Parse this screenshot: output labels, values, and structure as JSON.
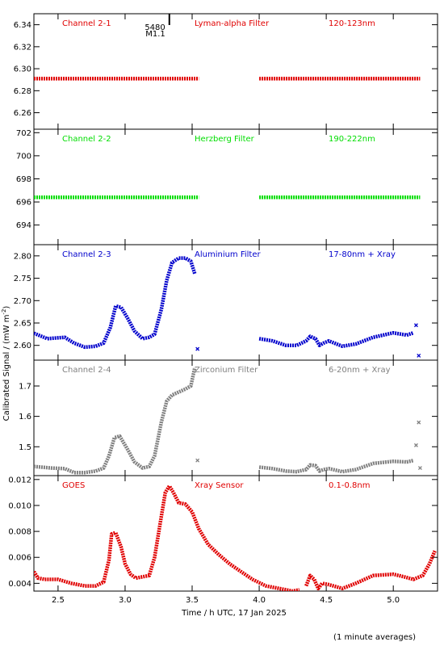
{
  "figure": {
    "ylabel": "Calibrated Signal / (mW m",
    "ylabel_sup": "-2",
    "ylabel_end": ")",
    "xlabel": "Time / h UTC, 17 Jan 2025",
    "footnote": "(1 minute averages)",
    "flare_marker": {
      "number": "5480",
      "class": "M1.1",
      "time": 3.33
    }
  },
  "chart_data": {
    "type": "scatter",
    "x_axis": {
      "range": [
        2.32,
        5.33
      ],
      "ticks": [
        2.5,
        3.0,
        3.5,
        4.0,
        4.5,
        5.0
      ],
      "tick_labels": [
        "2.5",
        "3.0",
        "3.5",
        "4.0",
        "4.5",
        "5.0"
      ]
    },
    "panels": [
      {
        "key": "p1",
        "color": "#e00000",
        "labels": [
          "Channel 2-1",
          "Lyman-alpha Filter",
          "120-123nm"
        ],
        "ylim": [
          6.245,
          6.35
        ],
        "ticks": [
          6.26,
          6.28,
          6.3,
          6.32,
          6.34
        ],
        "tick_labels": [
          "6.26",
          "6.28",
          "6.30",
          "6.32",
          "6.34"
        ],
        "series": [
          {
            "x": [
              2.32,
              3.55
            ],
            "y": [
              6.291,
              6.291
            ]
          },
          {
            "x": [
              4.0,
              5.2
            ],
            "y": [
              6.291,
              6.291
            ]
          }
        ]
      },
      {
        "key": "p2",
        "color": "#00dd00",
        "labels": [
          "Channel 2-2",
          "Herzberg Filter",
          "190-222nm"
        ],
        "ylim": [
          692.3,
          702.3
        ],
        "ticks": [
          694,
          696,
          698,
          700,
          702
        ],
        "tick_labels": [
          "694",
          "696",
          "698",
          "700",
          "702"
        ],
        "series": [
          {
            "x": [
              2.32,
              3.55
            ],
            "y": [
              696.4,
              696.4
            ]
          },
          {
            "x": [
              4.0,
              5.2
            ],
            "y": [
              696.4,
              696.4
            ]
          }
        ]
      },
      {
        "key": "p3",
        "color": "#0000cc",
        "labels": [
          "Channel 2-3",
          "Aluminium Filter",
          "17-80nm + Xray"
        ],
        "ylim": [
          2.567,
          2.825
        ],
        "ticks": [
          2.6,
          2.65,
          2.7,
          2.75,
          2.8
        ],
        "tick_labels": [
          "2.60",
          "2.65",
          "2.70",
          "2.75",
          "2.80"
        ],
        "series": [
          {
            "x": [
              2.32,
              2.42,
              2.55,
              2.62,
              2.7,
              2.78,
              2.84,
              2.89,
              2.93,
              2.97,
              3.02,
              3.07,
              3.13,
              3.18,
              3.22,
              3.27,
              3.31,
              3.35,
              3.4,
              3.45,
              3.49,
              3.52
            ],
            "y": [
              2.627,
              2.615,
              2.618,
              2.605,
              2.596,
              2.598,
              2.605,
              2.64,
              2.688,
              2.685,
              2.66,
              2.632,
              2.615,
              2.618,
              2.625,
              2.68,
              2.745,
              2.785,
              2.795,
              2.795,
              2.788,
              2.76
            ]
          },
          {
            "x": [
              3.54
            ],
            "y": [
              2.592
            ]
          },
          {
            "x": [
              4.0,
              4.1,
              4.2,
              4.28,
              4.35,
              4.38,
              4.42,
              4.45,
              4.48,
              4.52,
              4.62,
              4.72,
              4.85,
              5.0,
              5.1,
              5.15
            ],
            "y": [
              2.615,
              2.61,
              2.6,
              2.6,
              2.61,
              2.62,
              2.615,
              2.6,
              2.605,
              2.61,
              2.598,
              2.603,
              2.618,
              2.628,
              2.623,
              2.628
            ]
          },
          {
            "x": [
              5.17
            ],
            "y": [
              2.645
            ]
          },
          {
            "x": [
              5.19
            ],
            "y": [
              2.577
            ]
          }
        ]
      },
      {
        "key": "p4",
        "color": "#808080",
        "labels": [
          "Channel 2-4",
          "Zirconium Filter",
          "6-20nm + Xray"
        ],
        "ylim": [
          1.405,
          1.785
        ],
        "ticks": [
          1.5,
          1.6,
          1.7
        ],
        "tick_labels": [
          "1.5",
          "1.6",
          "1.7"
        ],
        "series": [
          {
            "x": [
              2.32,
              2.45,
              2.55,
              2.62,
              2.7,
              2.78,
              2.84,
              2.88,
              2.92,
              2.96,
              3.02,
              3.07,
              3.13,
              3.18,
              3.22,
              3.27,
              3.31,
              3.35,
              3.4,
              3.45,
              3.49,
              3.52
            ],
            "y": [
              1.435,
              1.43,
              1.428,
              1.415,
              1.415,
              1.42,
              1.43,
              1.47,
              1.53,
              1.535,
              1.49,
              1.45,
              1.43,
              1.435,
              1.47,
              1.58,
              1.65,
              1.67,
              1.68,
              1.69,
              1.7,
              1.76
            ]
          },
          {
            "x": [
              3.54
            ],
            "y": [
              1.455
            ]
          },
          {
            "x": [
              4.0,
              4.1,
              4.2,
              4.28,
              4.35,
              4.38,
              4.42,
              4.45,
              4.48,
              4.52,
              4.62,
              4.72,
              4.85,
              5.0,
              5.1,
              5.15
            ],
            "y": [
              1.433,
              1.428,
              1.42,
              1.418,
              1.425,
              1.44,
              1.438,
              1.42,
              1.425,
              1.428,
              1.418,
              1.425,
              1.445,
              1.452,
              1.45,
              1.455
            ]
          },
          {
            "x": [
              5.17
            ],
            "y": [
              1.505
            ]
          },
          {
            "x": [
              5.19
            ],
            "y": [
              1.58
            ]
          },
          {
            "x": [
              5.2
            ],
            "y": [
              1.43
            ]
          }
        ]
      },
      {
        "key": "p5",
        "color": "#e00000",
        "labels": [
          "GOES",
          "Xray Sensor",
          "0.1-0.8nm"
        ],
        "ylim": [
          0.0034,
          0.0123
        ],
        "ticks": [
          0.004,
          0.006,
          0.008,
          0.01,
          0.012
        ],
        "tick_labels": [
          "0.004",
          "0.006",
          "0.008",
          "0.010",
          "0.012"
        ],
        "series": [
          {
            "x": [
              2.32,
              2.35,
              2.4,
              2.5,
              2.6,
              2.7,
              2.78,
              2.84,
              2.88,
              2.9,
              2.93,
              2.97,
              3.0,
              3.04,
              3.08,
              3.13,
              3.18,
              3.22,
              3.26,
              3.3,
              3.33,
              3.36,
              3.4,
              3.45,
              3.5,
              3.55,
              3.62,
              3.7,
              3.78,
              3.85,
              3.95,
              4.05,
              4.15,
              4.25,
              4.3
            ],
            "y": [
              0.0049,
              0.0044,
              0.0043,
              0.0043,
              0.004,
              0.0038,
              0.0038,
              0.0041,
              0.0058,
              0.0078,
              0.0079,
              0.0068,
              0.0055,
              0.0047,
              0.0044,
              0.0045,
              0.0046,
              0.006,
              0.0085,
              0.011,
              0.0115,
              0.011,
              0.0102,
              0.0101,
              0.0095,
              0.0082,
              0.007,
              0.0062,
              0.0055,
              0.005,
              0.0043,
              0.0038,
              0.0036,
              0.0034,
              0.0035
            ]
          },
          {
            "x": [
              4.35,
              4.38,
              4.41,
              4.44,
              4.47,
              4.52,
              4.62,
              4.72,
              4.85,
              5.0,
              5.08,
              5.15,
              5.22,
              5.27,
              5.31
            ],
            "y": [
              0.0038,
              0.0046,
              0.0043,
              0.0036,
              0.004,
              0.0039,
              0.0036,
              0.004,
              0.0046,
              0.0047,
              0.0045,
              0.0043,
              0.0046,
              0.0055,
              0.0065
            ]
          }
        ]
      }
    ]
  }
}
